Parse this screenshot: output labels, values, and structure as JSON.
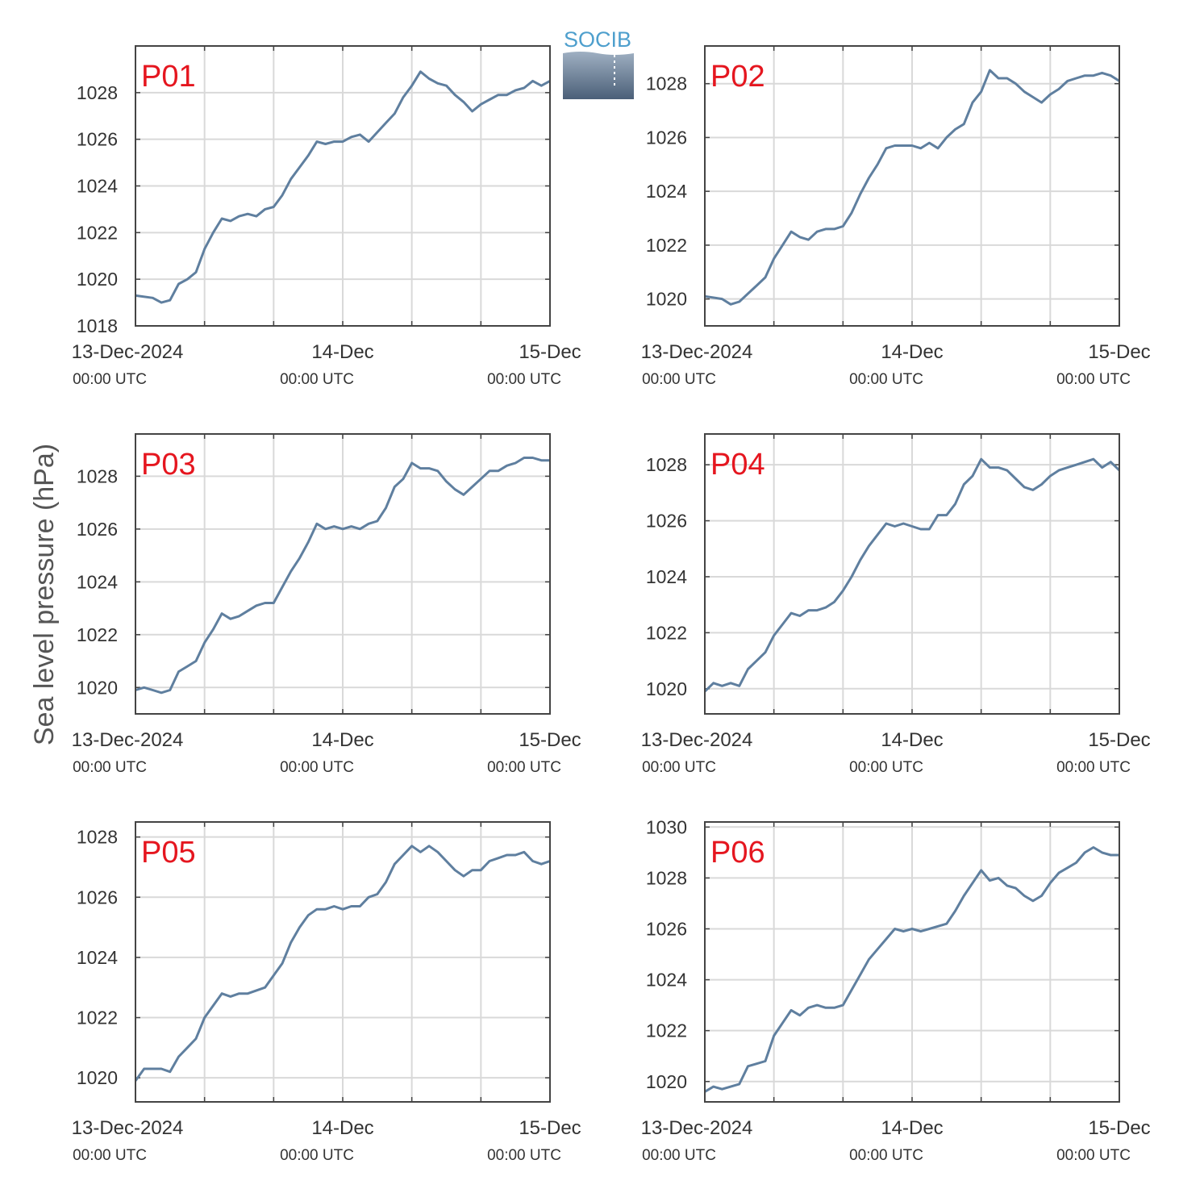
{
  "figure": {
    "ylabel": "Sea level pressure (hPa)",
    "logo_text": "SOCIB",
    "colors": {
      "series": "#5f7f9f",
      "panel_label": "#e5161f",
      "grid": "#d9d9d9",
      "axes": "#444444"
    }
  },
  "chart_data": [
    {
      "type": "line",
      "title": "P01",
      "x_ticks": [
        {
          "t": 0,
          "label": "13-Dec-2024",
          "sub": "00:00 UTC"
        },
        {
          "t": 24,
          "label": "14-Dec",
          "sub": "00:00 UTC"
        },
        {
          "t": 48,
          "label": "15-Dec",
          "sub": "00:00 UTC"
        }
      ],
      "xlim": [
        0,
        48
      ],
      "ylim": [
        1018,
        1030
      ],
      "y_ticks": [
        "1018",
        "1020",
        "1022",
        "1024",
        "1026",
        "1028"
      ],
      "grid": true,
      "series": [
        {
          "x": [
            0,
            2,
            3,
            4,
            5,
            6,
            7,
            8,
            9,
            10,
            11,
            12,
            13,
            14,
            15,
            16,
            17,
            18,
            19,
            20,
            21,
            22,
            23,
            24,
            25,
            26,
            27,
            28,
            29,
            30,
            31,
            32,
            33,
            34,
            35,
            36,
            37,
            38,
            39,
            40,
            41,
            42,
            43,
            44,
            45,
            46,
            47,
            48
          ],
          "y": [
            1019.3,
            1019.2,
            1019.0,
            1019.1,
            1019.8,
            1020.0,
            1020.3,
            1021.3,
            1022.0,
            1022.6,
            1022.5,
            1022.7,
            1022.8,
            1022.7,
            1023.0,
            1023.1,
            1023.6,
            1024.3,
            1024.8,
            1025.3,
            1025.9,
            1025.8,
            1025.9,
            1025.9,
            1026.1,
            1026.2,
            1025.9,
            1026.3,
            1026.7,
            1027.1,
            1027.8,
            1028.3,
            1028.9,
            1028.6,
            1028.4,
            1028.3,
            1027.9,
            1027.6,
            1027.2,
            1027.5,
            1027.7,
            1027.9,
            1027.9,
            1028.1,
            1028.2,
            1028.5,
            1028.3,
            1028.5
          ]
        }
      ]
    },
    {
      "type": "line",
      "title": "P02",
      "x_ticks": [
        {
          "t": 0,
          "label": "13-Dec-2024",
          "sub": "00:00 UTC"
        },
        {
          "t": 24,
          "label": "14-Dec",
          "sub": "00:00 UTC"
        },
        {
          "t": 48,
          "label": "15-Dec",
          "sub": "00:00 UTC"
        }
      ],
      "xlim": [
        0,
        48
      ],
      "ylim": [
        1019,
        1029.4
      ],
      "y_ticks": [
        "1020",
        "1022",
        "1024",
        "1026",
        "1028"
      ],
      "grid": true,
      "series": [
        {
          "x": [
            0,
            2,
            3,
            4,
            5,
            6,
            7,
            8,
            9,
            10,
            11,
            12,
            13,
            14,
            15,
            16,
            17,
            18,
            19,
            20,
            21,
            22,
            23,
            24,
            25,
            26,
            27,
            28,
            29,
            30,
            31,
            32,
            33,
            34,
            35,
            36,
            37,
            38,
            39,
            40,
            41,
            42,
            43,
            44,
            45,
            46,
            47,
            48
          ],
          "y": [
            1020.1,
            1020.0,
            1019.8,
            1019.9,
            1020.2,
            1020.5,
            1020.8,
            1021.5,
            1022.0,
            1022.5,
            1022.3,
            1022.2,
            1022.5,
            1022.6,
            1022.6,
            1022.7,
            1023.2,
            1023.9,
            1024.5,
            1025.0,
            1025.6,
            1025.7,
            1025.7,
            1025.7,
            1025.6,
            1025.8,
            1025.6,
            1026.0,
            1026.3,
            1026.5,
            1027.3,
            1027.7,
            1028.5,
            1028.2,
            1028.2,
            1028.0,
            1027.7,
            1027.5,
            1027.3,
            1027.6,
            1027.8,
            1028.1,
            1028.2,
            1028.3,
            1028.3,
            1028.4,
            1028.3,
            1028.1
          ]
        }
      ]
    },
    {
      "type": "line",
      "title": "P03",
      "x_ticks": [
        {
          "t": 0,
          "label": "13-Dec-2024",
          "sub": "00:00 UTC"
        },
        {
          "t": 24,
          "label": "14-Dec",
          "sub": "00:00 UTC"
        },
        {
          "t": 48,
          "label": "15-Dec",
          "sub": "00:00 UTC"
        }
      ],
      "xlim": [
        0,
        48
      ],
      "ylim": [
        1019,
        1029.6
      ],
      "y_ticks": [
        "1020",
        "1022",
        "1024",
        "1026",
        "1028"
      ],
      "grid": true,
      "series": [
        {
          "x": [
            0,
            1,
            2,
            3,
            4,
            5,
            6,
            7,
            8,
            9,
            10,
            11,
            12,
            13,
            14,
            15,
            16,
            17,
            18,
            19,
            20,
            21,
            22,
            23,
            24,
            25,
            26,
            27,
            28,
            29,
            30,
            31,
            32,
            33,
            34,
            35,
            36,
            37,
            38,
            39,
            40,
            41,
            42,
            43,
            44,
            45,
            46,
            47,
            48
          ],
          "y": [
            1019.9,
            1020.0,
            1019.9,
            1019.8,
            1019.9,
            1020.6,
            1020.8,
            1021.0,
            1021.7,
            1022.2,
            1022.8,
            1022.6,
            1022.7,
            1022.9,
            1023.1,
            1023.2,
            1023.2,
            1023.8,
            1024.4,
            1024.9,
            1025.5,
            1026.2,
            1026.0,
            1026.1,
            1026.0,
            1026.1,
            1026.0,
            1026.2,
            1026.3,
            1026.8,
            1027.6,
            1027.9,
            1028.5,
            1028.3,
            1028.3,
            1028.2,
            1027.8,
            1027.5,
            1027.3,
            1027.6,
            1027.9,
            1028.2,
            1028.2,
            1028.4,
            1028.5,
            1028.7,
            1028.7,
            1028.6,
            1028.6
          ]
        }
      ]
    },
    {
      "type": "line",
      "title": "P04",
      "x_ticks": [
        {
          "t": 0,
          "label": "13-Dec-2024",
          "sub": "00:00 UTC"
        },
        {
          "t": 24,
          "label": "14-Dec",
          "sub": "00:00 UTC"
        },
        {
          "t": 48,
          "label": "15-Dec",
          "sub": "00:00 UTC"
        }
      ],
      "xlim": [
        0,
        48
      ],
      "ylim": [
        1019.1,
        1029.1
      ],
      "y_ticks": [
        "1020",
        "1022",
        "1024",
        "1026",
        "1028"
      ],
      "grid": true,
      "series": [
        {
          "x": [
            0,
            1,
            2,
            3,
            4,
            5,
            6,
            7,
            8,
            9,
            10,
            11,
            12,
            13,
            14,
            15,
            16,
            17,
            18,
            19,
            20,
            21,
            22,
            23,
            24,
            25,
            26,
            27,
            28,
            29,
            30,
            31,
            32,
            33,
            34,
            35,
            36,
            37,
            38,
            39,
            40,
            41,
            42,
            43,
            44,
            45,
            46,
            47,
            48
          ],
          "y": [
            1019.9,
            1020.2,
            1020.1,
            1020.2,
            1020.1,
            1020.7,
            1021.0,
            1021.3,
            1021.9,
            1022.3,
            1022.7,
            1022.6,
            1022.8,
            1022.8,
            1022.9,
            1023.1,
            1023.5,
            1024.0,
            1024.6,
            1025.1,
            1025.5,
            1025.9,
            1025.8,
            1025.9,
            1025.8,
            1025.7,
            1025.7,
            1026.2,
            1026.2,
            1026.6,
            1027.3,
            1027.6,
            1028.2,
            1027.9,
            1027.9,
            1027.8,
            1027.5,
            1027.2,
            1027.1,
            1027.3,
            1027.6,
            1027.8,
            1027.9,
            1028.0,
            1028.1,
            1028.2,
            1027.9,
            1028.1,
            1027.8
          ]
        }
      ]
    },
    {
      "type": "line",
      "title": "P05",
      "x_ticks": [
        {
          "t": 0,
          "label": "13-Dec-2024",
          "sub": "00:00 UTC"
        },
        {
          "t": 24,
          "label": "14-Dec",
          "sub": "00:00 UTC"
        },
        {
          "t": 48,
          "label": "15-Dec",
          "sub": "00:00 UTC"
        }
      ],
      "xlim": [
        0,
        48
      ],
      "ylim": [
        1019.2,
        1028.5
      ],
      "y_ticks": [
        "1020",
        "1022",
        "1024",
        "1026",
        "1028"
      ],
      "grid": true,
      "series": [
        {
          "x": [
            0,
            1,
            2,
            3,
            4,
            5,
            6,
            7,
            8,
            9,
            10,
            11,
            12,
            13,
            14,
            15,
            16,
            17,
            18,
            19,
            20,
            21,
            22,
            23,
            24,
            25,
            26,
            27,
            28,
            29,
            30,
            31,
            32,
            33,
            34,
            35,
            36,
            37,
            38,
            39,
            40,
            41,
            42,
            43,
            44,
            45,
            46,
            47,
            48
          ],
          "y": [
            1019.9,
            1020.3,
            1020.3,
            1020.3,
            1020.2,
            1020.7,
            1021.0,
            1021.3,
            1022.0,
            1022.4,
            1022.8,
            1022.7,
            1022.8,
            1022.8,
            1022.9,
            1023.0,
            1023.4,
            1023.8,
            1024.5,
            1025.0,
            1025.4,
            1025.6,
            1025.6,
            1025.7,
            1025.6,
            1025.7,
            1025.7,
            1026.0,
            1026.1,
            1026.5,
            1027.1,
            1027.4,
            1027.7,
            1027.5,
            1027.7,
            1027.5,
            1027.2,
            1026.9,
            1026.7,
            1026.9,
            1026.9,
            1027.2,
            1027.3,
            1027.4,
            1027.4,
            1027.5,
            1027.2,
            1027.1,
            1027.2
          ]
        }
      ]
    },
    {
      "type": "line",
      "title": "P06",
      "x_ticks": [
        {
          "t": 0,
          "label": "13-Dec-2024",
          "sub": "00:00 UTC"
        },
        {
          "t": 24,
          "label": "14-Dec",
          "sub": "00:00 UTC"
        },
        {
          "t": 48,
          "label": "15-Dec",
          "sub": "00:00 UTC"
        }
      ],
      "xlim": [
        0,
        48
      ],
      "ylim": [
        1019.2,
        1030.2
      ],
      "y_ticks": [
        "1020",
        "1022",
        "1024",
        "1026",
        "1028",
        "1030"
      ],
      "grid": true,
      "series": [
        {
          "x": [
            0,
            1,
            2,
            3,
            4,
            5,
            6,
            7,
            8,
            9,
            10,
            11,
            12,
            13,
            14,
            15,
            16,
            17,
            18,
            19,
            20,
            21,
            22,
            23,
            24,
            25,
            26,
            27,
            28,
            29,
            30,
            31,
            32,
            33,
            34,
            35,
            36,
            37,
            38,
            39,
            40,
            41,
            42,
            43,
            44,
            45,
            46,
            47,
            48
          ],
          "y": [
            1019.6,
            1019.8,
            1019.7,
            1019.8,
            1019.9,
            1020.6,
            1020.7,
            1020.8,
            1021.8,
            1022.3,
            1022.8,
            1022.6,
            1022.9,
            1023.0,
            1022.9,
            1022.9,
            1023.0,
            1023.6,
            1024.2,
            1024.8,
            1025.2,
            1025.6,
            1026.0,
            1025.9,
            1026.0,
            1025.9,
            1026.0,
            1026.1,
            1026.2,
            1026.7,
            1027.3,
            1027.8,
            1028.3,
            1027.9,
            1028.0,
            1027.7,
            1027.6,
            1027.3,
            1027.1,
            1027.3,
            1027.8,
            1028.2,
            1028.4,
            1028.6,
            1029.0,
            1029.2,
            1029.0,
            1028.9,
            1028.9
          ]
        }
      ]
    }
  ]
}
